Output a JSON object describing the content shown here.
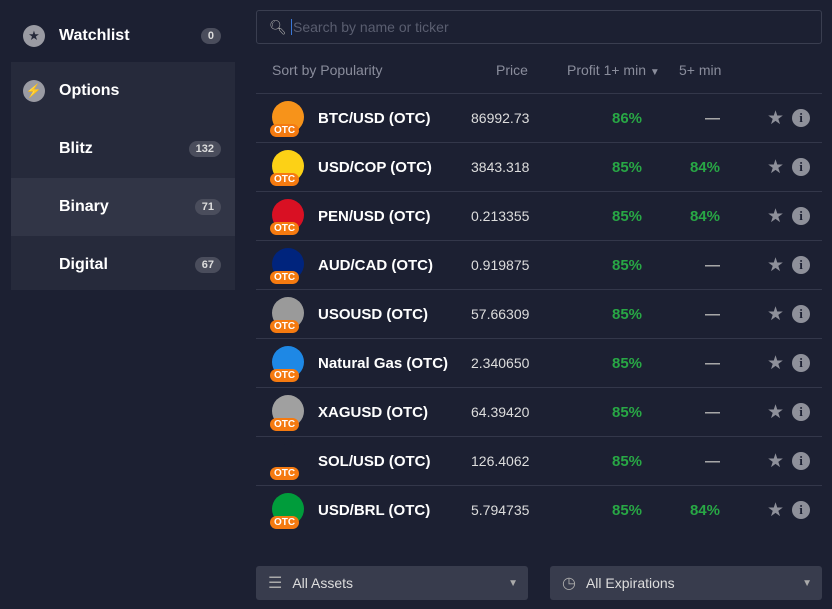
{
  "sidebar": {
    "watchlist": {
      "label": "Watchlist",
      "count": "0"
    },
    "options": {
      "label": "Options"
    },
    "items": [
      {
        "label": "Blitz",
        "count": "132"
      },
      {
        "label": "Binary",
        "count": "71",
        "selected": true
      },
      {
        "label": "Digital",
        "count": "67"
      }
    ]
  },
  "search": {
    "placeholder": "Search by name or ticker",
    "value": ""
  },
  "headers": {
    "sort": "Sort by Popularity",
    "price": "Price",
    "profit1": "Profit 1+ min",
    "profit5": "5+ min"
  },
  "otc_badge": "OTC",
  "assets": [
    {
      "name": "BTC/USD (OTC)",
      "price": "86992.73",
      "p1": "86%",
      "p5": "—",
      "color": "#f7931a"
    },
    {
      "name": "USD/COP (OTC)",
      "price": "3843.318",
      "p1": "85%",
      "p5": "84%",
      "color": "#fcd116"
    },
    {
      "name": "PEN/USD (OTC)",
      "price": "0.213355",
      "p1": "85%",
      "p5": "84%",
      "color": "#d91023"
    },
    {
      "name": "AUD/CAD (OTC)",
      "price": "0.919875",
      "p1": "85%",
      "p5": "—",
      "color": "#00247d"
    },
    {
      "name": "USOUSD (OTC)",
      "price": "57.66309",
      "p1": "85%",
      "p5": "—",
      "color": "#9a9a9a"
    },
    {
      "name": "Natural Gas (OTC)",
      "price": "2.340650",
      "p1": "85%",
      "p5": "—",
      "color": "#1e88e5"
    },
    {
      "name": "XAGUSD (OTC)",
      "price": "64.39420",
      "p1": "85%",
      "p5": "—",
      "color": "#a0a0a0"
    },
    {
      "name": "SOL/USD (OTC)",
      "price": "126.4062",
      "p1": "85%",
      "p5": "—",
      "color": "#1c2032"
    },
    {
      "name": "USD/BRL (OTC)",
      "price": "5.794735",
      "p1": "85%",
      "p5": "84%",
      "color": "#009c3b"
    }
  ],
  "footer": {
    "assets": "All Assets",
    "expirations": "All Expirations"
  }
}
